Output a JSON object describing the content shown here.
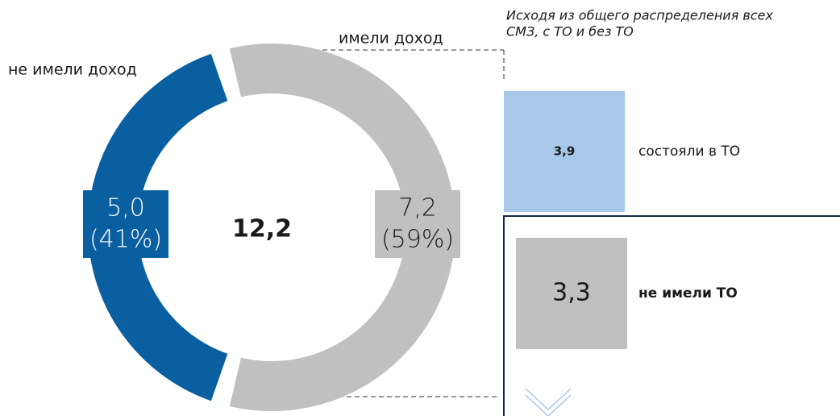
{
  "chart_data": [
    {
      "type": "donut",
      "categories": [
        "не имели доход",
        "имели доход"
      ],
      "values": [
        5.0,
        7.2
      ],
      "value_labels": [
        "5,0",
        "7,2"
      ],
      "percents": [
        41,
        59
      ],
      "percent_labels": [
        "(41%)",
        "(59%)"
      ],
      "colors": [
        "#0a5fa0",
        "#c0c0c0"
      ],
      "total": 12.2,
      "total_label": "12,2"
    },
    {
      "type": "square",
      "note": [
        "Исходя из общего распределения всех",
        "СМЗ, с ТО и без ТО"
      ],
      "categories": [
        "состояли в ТО",
        "не имели ТО"
      ],
      "values": [
        3.9,
        3.3
      ],
      "value_labels": [
        "3,9",
        "3,3"
      ],
      "colors": [
        "#a8c8ea",
        "#c0c0c0"
      ]
    }
  ]
}
